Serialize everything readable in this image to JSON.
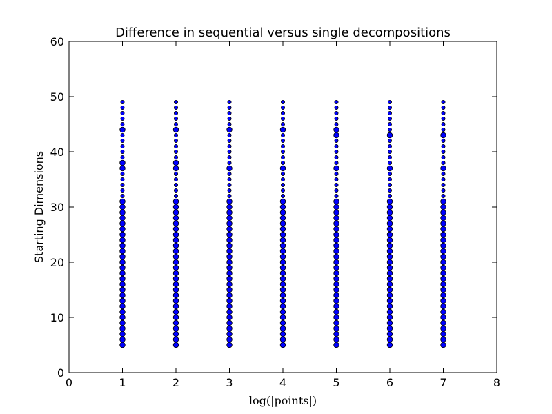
{
  "chart_data": {
    "type": "scatter",
    "title": "Difference in sequential versus single decompositions",
    "xlabel": "log(|points|)",
    "ylabel": "Starting Dimensions",
    "xlim": [
      0,
      8
    ],
    "ylim": [
      0,
      60
    ],
    "xticks": [
      0,
      1,
      2,
      3,
      4,
      5,
      6,
      7,
      8
    ],
    "yticks": [
      0,
      10,
      20,
      30,
      40,
      50,
      60
    ],
    "grid": false,
    "marker_color": "#0000ff",
    "marker_edge_color": "#000000",
    "series": [
      {
        "x": [
          1,
          2,
          3,
          4,
          5,
          6,
          7
        ],
        "y_start": 5,
        "y_end": 49,
        "y_step": 1,
        "larger_marker_y": {
          "1": [
            5,
            6,
            7,
            8,
            9,
            10,
            11,
            12,
            13,
            14,
            15,
            16,
            17,
            18,
            19,
            20,
            21,
            22,
            23,
            24,
            25,
            26,
            27,
            28,
            29,
            30,
            31,
            37,
            38,
            44
          ],
          "2": [
            5,
            6,
            7,
            8,
            9,
            10,
            11,
            12,
            13,
            14,
            15,
            16,
            17,
            18,
            19,
            20,
            21,
            22,
            23,
            24,
            25,
            26,
            27,
            28,
            29,
            30,
            31,
            37,
            38,
            44
          ],
          "3": [
            5,
            6,
            7,
            8,
            9,
            10,
            11,
            12,
            13,
            14,
            15,
            16,
            17,
            18,
            19,
            20,
            21,
            22,
            23,
            24,
            25,
            26,
            27,
            28,
            29,
            30,
            31,
            37,
            44
          ],
          "4": [
            5,
            6,
            7,
            8,
            9,
            10,
            11,
            12,
            13,
            14,
            15,
            16,
            17,
            18,
            19,
            20,
            21,
            22,
            23,
            24,
            25,
            26,
            27,
            28,
            29,
            30,
            31,
            37,
            44
          ],
          "5": [
            5,
            6,
            7,
            8,
            9,
            10,
            11,
            12,
            13,
            14,
            15,
            16,
            17,
            18,
            19,
            20,
            21,
            22,
            23,
            24,
            25,
            26,
            27,
            28,
            29,
            30,
            31,
            37,
            43,
            44
          ],
          "6": [
            5,
            6,
            7,
            8,
            9,
            10,
            11,
            12,
            13,
            14,
            15,
            16,
            17,
            18,
            19,
            20,
            21,
            22,
            23,
            24,
            25,
            26,
            27,
            28,
            29,
            30,
            31,
            37,
            43
          ],
          "7": [
            5,
            6,
            7,
            8,
            9,
            10,
            11,
            12,
            13,
            14,
            15,
            16,
            17,
            18,
            19,
            20,
            21,
            22,
            23,
            24,
            25,
            26,
            27,
            28,
            29,
            30,
            31,
            37,
            43
          ]
        }
      }
    ]
  }
}
